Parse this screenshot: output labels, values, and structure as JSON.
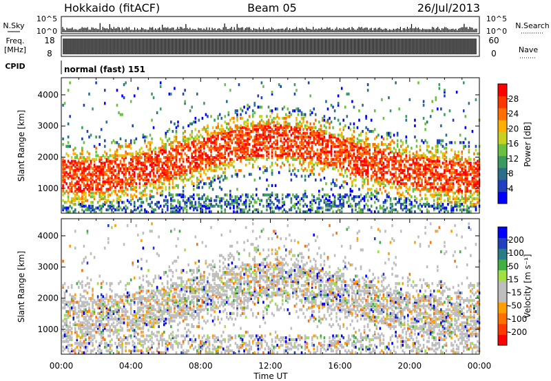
{
  "header": {
    "title": "Hokkaido (fitACF)",
    "beam": "Beam 05",
    "date": "26/Jul/2013"
  },
  "strips": {
    "nsky_label": "N.Sky",
    "nsky_ticks": [
      "10^5",
      "10^0"
    ],
    "nsearch_label": "N.Search",
    "freq_label": "Freq.",
    "freq_unit": "[MHz]",
    "freq_ticks": [
      "18",
      "8"
    ],
    "nave_label": "Nave",
    "nave_ticks": [
      "60",
      "0"
    ],
    "cpid_label": "CPID",
    "cpid_text": "normal (fast) 151"
  },
  "colors": {
    "background": "#ffffff",
    "axis": "#000000",
    "ground_scatter": "#bebebe"
  },
  "chart_data": [
    {
      "type": "heatmap",
      "name": "power",
      "ylabel": "Slant Range [km]",
      "yticks": [
        "4000",
        "3000",
        "2000",
        "1000"
      ],
      "ylim": [
        200,
        4550
      ],
      "xlim_hours": [
        0,
        24
      ],
      "xticks": [
        "00:00",
        "04:00",
        "08:00",
        "12:00",
        "16:00",
        "20:00",
        "00:00"
      ],
      "colorbar": {
        "label": "Power [dB]",
        "ticks": [
          "28",
          "24",
          "20",
          "16",
          "12",
          "8",
          "4"
        ],
        "range": [
          0,
          30
        ],
        "bands": [
          {
            "from": 0,
            "to": 3,
            "color": "#0000ff"
          },
          {
            "from": 3,
            "to": 6,
            "color": "#2040c0"
          },
          {
            "from": 6,
            "to": 9,
            "color": "#2a6e8a"
          },
          {
            "from": 9,
            "to": 12,
            "color": "#3a9a60"
          },
          {
            "from": 12,
            "to": 15,
            "color": "#6cc040"
          },
          {
            "from": 15,
            "to": 18,
            "color": "#c8d020"
          },
          {
            "from": 18,
            "to": 21,
            "color": "#ffb000"
          },
          {
            "from": 21,
            "to": 24,
            "color": "#ff7000"
          },
          {
            "from": 24,
            "to": 27,
            "color": "#ff3800"
          },
          {
            "from": 27,
            "to": 30,
            "color": "#ff0000"
          }
        ]
      }
    },
    {
      "type": "heatmap",
      "name": "velocity",
      "ylabel": "Slant Range [km]",
      "yticks": [
        "4000",
        "3000",
        "2000",
        "1000"
      ],
      "ylim": [
        200,
        4550
      ],
      "xlim_hours": [
        0,
        24
      ],
      "xticks": [
        "00:00",
        "04:00",
        "08:00",
        "12:00",
        "16:00",
        "20:00",
        "00:00"
      ],
      "xlabel": "Time UT",
      "colorbar": {
        "label": "Velocity [m s⁻¹]",
        "ticks": [
          "200",
          "100",
          "50",
          "15",
          "-15",
          "-50",
          "-100",
          "-200"
        ],
        "bands": [
          {
            "color": "#ff0000"
          },
          {
            "color": "#ff3a00"
          },
          {
            "color": "#ff7000"
          },
          {
            "color": "#ffa000"
          },
          {
            "color": "#bebebe"
          },
          {
            "color": "#bebebe"
          },
          {
            "color": "#a0e040"
          },
          {
            "color": "#40b040"
          },
          {
            "color": "#2a7a8a"
          },
          {
            "color": "#2040c0"
          },
          {
            "color": "#0000ff"
          }
        ]
      }
    }
  ]
}
